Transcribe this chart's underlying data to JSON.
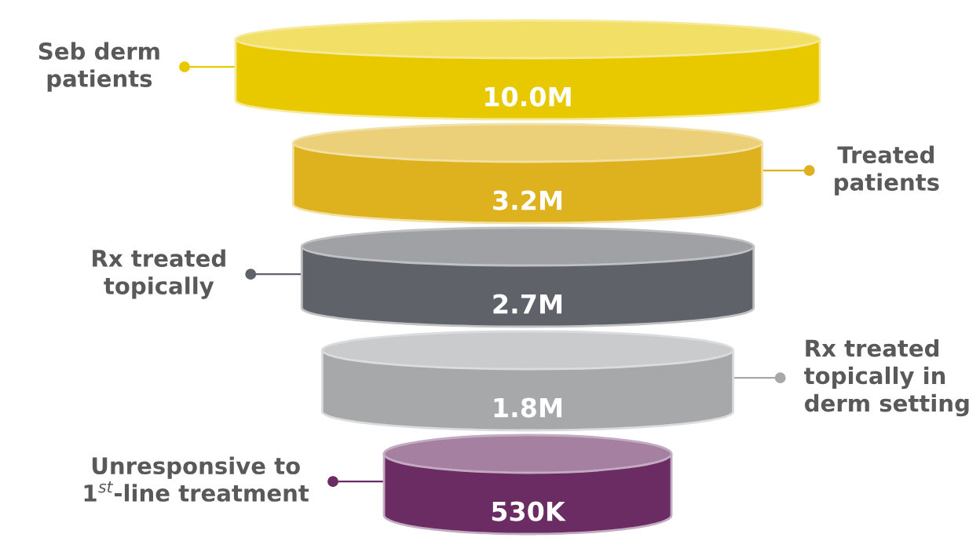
{
  "chart_data": {
    "type": "other",
    "categories": [
      "Seb derm\npatients",
      "Treated\npatients",
      "Rx treated\ntopically",
      "Rx treated\ntopically in\nderm setting",
      "Unresponsive to\n1$^{st}$-line treatment"
    ],
    "values": [
      10000000,
      3200000,
      2700000,
      1800000,
      530000
    ],
    "value_labels": [
      "10.0M",
      "3.2M",
      "2.7M",
      "1.8M",
      "530K"
    ],
    "colors": [
      "#e8c900",
      "#deb11f",
      "#5f6369",
      "#a6a8aa",
      "#6a2c63"
    ]
  }
}
